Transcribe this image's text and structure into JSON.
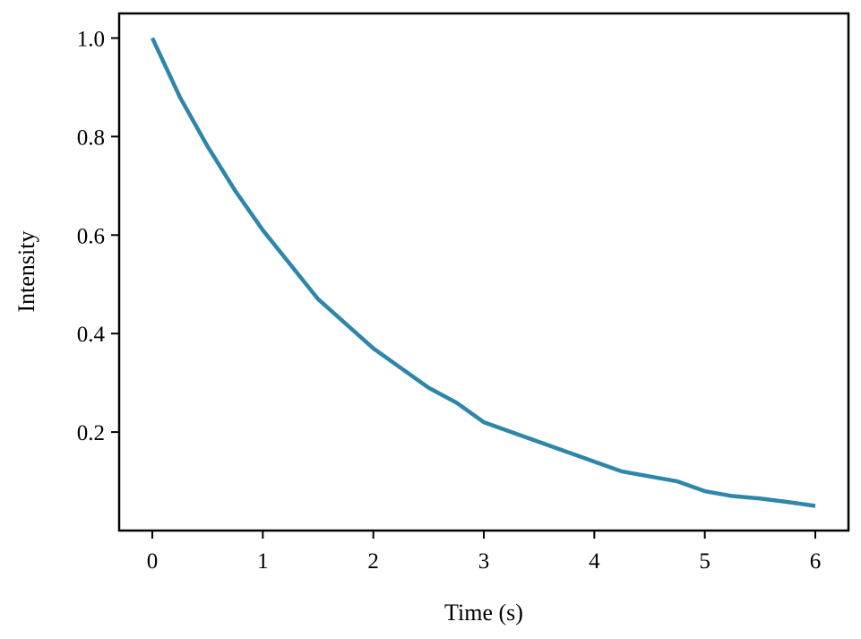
{
  "chart_data": {
    "type": "line",
    "title": "",
    "xlabel": "Time (s)",
    "ylabel": "Intensity",
    "xlim": [
      -0.3,
      6.3
    ],
    "ylim": [
      0.0,
      1.05
    ],
    "xticks": [
      0,
      1,
      2,
      3,
      4,
      5,
      6
    ],
    "xtick_labels": [
      "0",
      "1",
      "2",
      "3",
      "4",
      "5",
      "6"
    ],
    "yticks": [
      0.2,
      0.4,
      0.6,
      0.8,
      1.0
    ],
    "ytick_labels": [
      "0.2",
      "0.4",
      "0.6",
      "0.8",
      "1.0"
    ],
    "grid": false,
    "legend": "none",
    "series": [
      {
        "color": "#2e86a8",
        "x": [
          0.0,
          0.25,
          0.5,
          0.75,
          1.0,
          1.25,
          1.5,
          1.75,
          2.0,
          2.25,
          2.5,
          2.75,
          3.0,
          3.25,
          3.5,
          3.75,
          4.0,
          4.25,
          4.5,
          4.75,
          5.0,
          5.25,
          5.5,
          5.75,
          6.0
        ],
        "y": [
          1.0,
          0.88,
          0.78,
          0.69,
          0.61,
          0.54,
          0.47,
          0.42,
          0.37,
          0.33,
          0.29,
          0.26,
          0.22,
          0.2,
          0.18,
          0.16,
          0.14,
          0.12,
          0.11,
          0.1,
          0.08,
          0.07,
          0.065,
          0.058,
          0.05
        ]
      }
    ]
  }
}
